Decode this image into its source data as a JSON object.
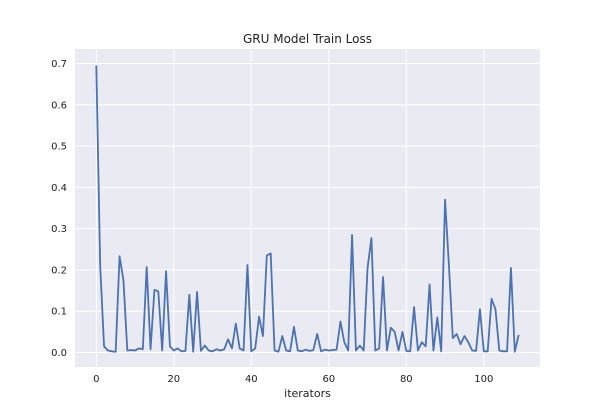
{
  "chart_data": {
    "type": "line",
    "title": "GRU Model Train Loss",
    "xlabel": "iterators",
    "ylabel": "",
    "xlim": [
      -5.5,
      114.5
    ],
    "ylim": [
      -0.035,
      0.735
    ],
    "xticks": [
      0,
      20,
      40,
      60,
      80,
      100
    ],
    "yticks": [
      0.0,
      0.1,
      0.2,
      0.3,
      0.4,
      0.5,
      0.6,
      0.7
    ],
    "ytick_labels": [
      "0.0",
      "0.1",
      "0.2",
      "0.3",
      "0.4",
      "0.5",
      "0.6",
      "0.7"
    ],
    "grid": true,
    "series": [
      {
        "color": "#4c72b0",
        "x": [
          0,
          1,
          2,
          3,
          4,
          5,
          6,
          7,
          8,
          9,
          10,
          11,
          12,
          13,
          14,
          15,
          16,
          17,
          18,
          19,
          20,
          21,
          22,
          23,
          24,
          25,
          26,
          27,
          28,
          29,
          30,
          31,
          32,
          33,
          34,
          35,
          36,
          37,
          38,
          39,
          40,
          41,
          42,
          43,
          44,
          45,
          46,
          47,
          48,
          49,
          50,
          51,
          52,
          53,
          54,
          55,
          56,
          57,
          58,
          59,
          60,
          61,
          62,
          63,
          64,
          65,
          66,
          67,
          68,
          69,
          70,
          71,
          72,
          73,
          74,
          75,
          76,
          77,
          78,
          79,
          80,
          81,
          82,
          83,
          84,
          85,
          86,
          87,
          88,
          89,
          90,
          91,
          92,
          93,
          94,
          95,
          96,
          97,
          98,
          99,
          100,
          101,
          102,
          103,
          104,
          105,
          106,
          107,
          108,
          109
        ],
        "values": [
          0.695,
          0.21,
          0.015,
          0.005,
          0.003,
          0.002,
          0.233,
          0.175,
          0.005,
          0.006,
          0.005,
          0.01,
          0.008,
          0.207,
          0.008,
          0.152,
          0.148,
          0.005,
          0.197,
          0.015,
          0.005,
          0.01,
          0.003,
          0.004,
          0.14,
          0.002,
          0.147,
          0.004,
          0.017,
          0.005,
          0.003,
          0.008,
          0.005,
          0.008,
          0.032,
          0.01,
          0.07,
          0.01,
          0.005,
          0.212,
          0.003,
          0.01,
          0.087,
          0.04,
          0.235,
          0.24,
          0.005,
          0.002,
          0.04,
          0.005,
          0.003,
          0.062,
          0.005,
          0.003,
          0.007,
          0.004,
          0.006,
          0.045,
          0.003,
          0.007,
          0.005,
          0.006,
          0.007,
          0.075,
          0.025,
          0.005,
          0.285,
          0.005,
          0.017,
          0.005,
          0.205,
          0.277,
          0.005,
          0.01,
          0.183,
          0.005,
          0.06,
          0.05,
          0.005,
          0.05,
          0.004,
          0.003,
          0.11,
          0.005,
          0.025,
          0.015,
          0.165,
          0.005,
          0.085,
          0.003,
          0.37,
          0.21,
          0.035,
          0.045,
          0.02,
          0.04,
          0.025,
          0.005,
          0.004,
          0.105,
          0.003,
          0.003,
          0.13,
          0.105,
          0.005,
          0.003,
          0.003,
          0.205,
          0.002,
          0.043
        ]
      }
    ]
  }
}
